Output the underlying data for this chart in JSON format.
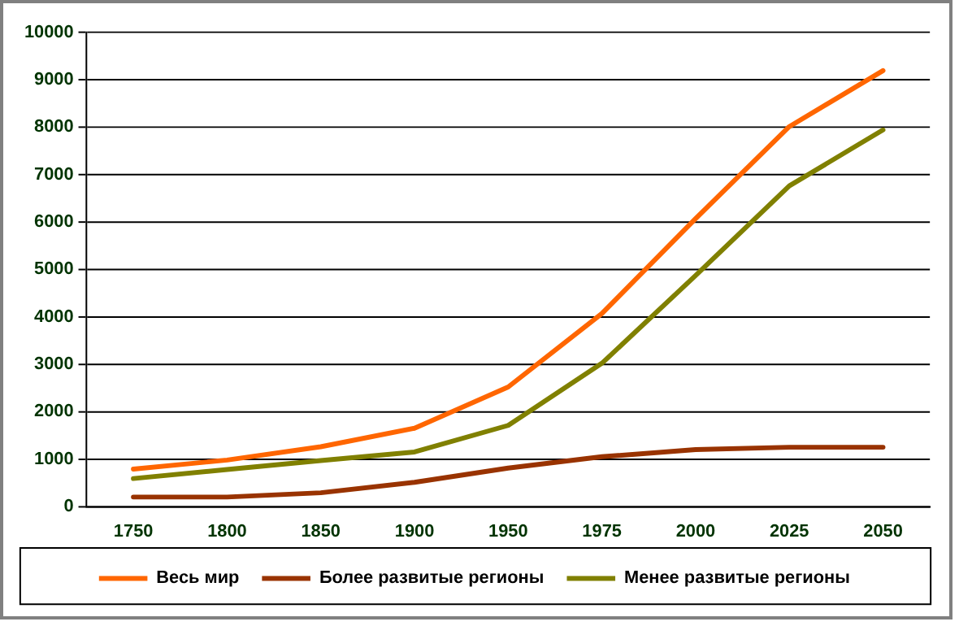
{
  "chart_data": {
    "type": "line",
    "categories": [
      "1750",
      "1800",
      "1850",
      "1900",
      "1950",
      "1975",
      "2000",
      "2025",
      "2050"
    ],
    "series": [
      {
        "name": "Весь мир",
        "color": "#ff6600",
        "values": [
          790,
          980,
          1260,
          1650,
          2520,
          4070,
          6070,
          8010,
          9190
        ]
      },
      {
        "name": "Более развитые регионы",
        "color": "#993300",
        "values": [
          200,
          200,
          290,
          510,
          810,
          1050,
          1200,
          1250,
          1250
        ]
      },
      {
        "name": "Менее развитые регионы",
        "color": "#808000",
        "values": [
          590,
          780,
          970,
          1150,
          1710,
          3020,
          4870,
          6760,
          7940
        ]
      }
    ],
    "ylim": [
      0,
      10000
    ],
    "yticks": [
      0,
      1000,
      2000,
      3000,
      4000,
      5000,
      6000,
      7000,
      8000,
      9000,
      10000
    ],
    "grid": "y",
    "legend": "bottom",
    "marker": "none",
    "line_style": "solid"
  }
}
